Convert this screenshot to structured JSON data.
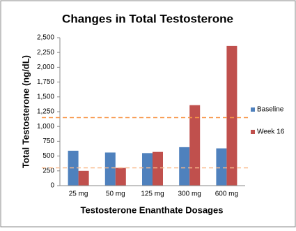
{
  "chart_data": {
    "type": "bar",
    "title": "Changes in Total Testosterone",
    "x_label": "Testosterone Enanthate Dosages",
    "y_label": "Total Testosterone (ng/dL)",
    "categories": [
      "25 mg",
      "50 mg",
      "125 mg",
      "300 mg",
      "600 mg"
    ],
    "series": [
      {
        "name": "Baseline",
        "color": "#4f81bd",
        "values": [
          590,
          560,
          550,
          650,
          630
        ]
      },
      {
        "name": "Week 16",
        "color": "#c0504d",
        "values": [
          250,
          300,
          570,
          1360,
          2360
        ]
      }
    ],
    "ylim": [
      0,
      2500
    ],
    "yticks": [
      0,
      250,
      500,
      750,
      {
        "value": 1000,
        "label": "1,000"
      },
      {
        "value": 1250,
        "label": "1,250"
      },
      {
        "value": 1500,
        "label": "1,500"
      },
      {
        "value": 1750,
        "label": "1,750"
      },
      {
        "value": 2000,
        "label": "2,000"
      },
      {
        "value": 2250,
        "label": "2,250"
      },
      {
        "value": 2500,
        "label": "2,500"
      }
    ],
    "reference_lines": [
      {
        "value": 1150,
        "color": "#f79646"
      },
      {
        "value": 300,
        "color": "#f9b98a"
      }
    ],
    "legend": "right",
    "grid": false
  }
}
